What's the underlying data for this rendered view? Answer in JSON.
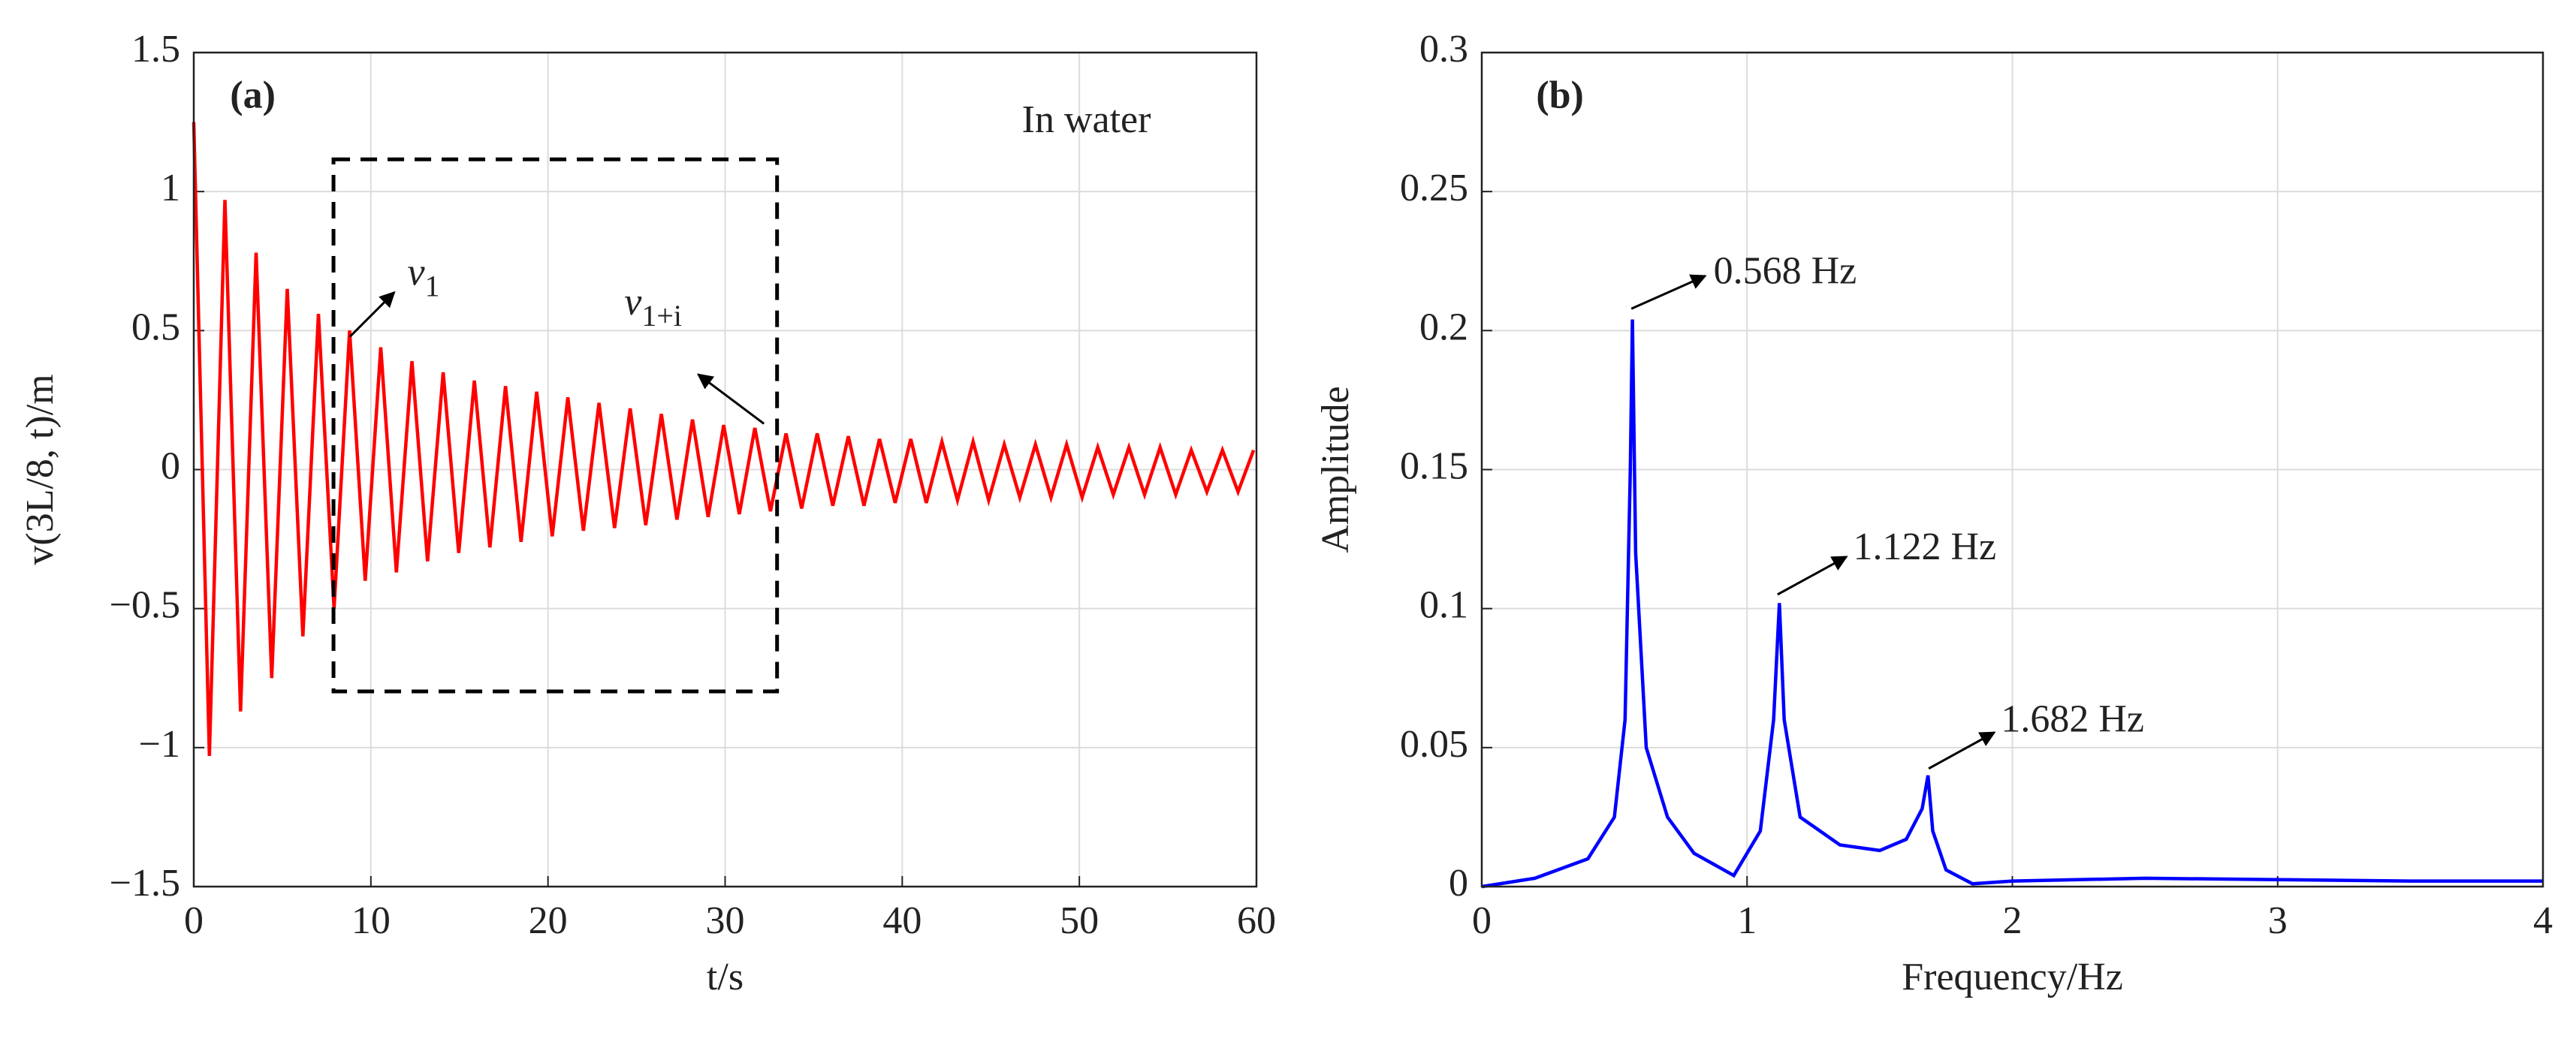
{
  "chart_data": [
    {
      "type": "line",
      "xlabel": "t/s",
      "ylabel": "v(3L/8, t)/m",
      "xlim": [
        0,
        60
      ],
      "xticks": [
        0,
        10,
        20,
        30,
        40,
        50,
        60
      ],
      "ylim": [
        -1.5,
        1.5
      ],
      "yticks": [
        {
          "value": -1.5,
          "label": "−1.5"
        },
        {
          "value": -1,
          "label": "−1"
        },
        {
          "value": -0.5,
          "label": "−0.5"
        },
        0,
        0.5,
        1,
        1.5
      ],
      "grid": true,
      "annotations": [
        {
          "text": "(a)"
        },
        {
          "text": "In water"
        },
        {
          "text": "v",
          "sub": "1"
        },
        {
          "text": "v",
          "sub": "1+i"
        }
      ],
      "series": [
        {
          "color": "#ff0000",
          "x": [
            0,
            0.88,
            1.76,
            2.64,
            3.52,
            4.4,
            5.28,
            6.16,
            7.04,
            7.92,
            8.8,
            9.68,
            10.56,
            11.44,
            12.32,
            13.2,
            14.08,
            14.96,
            15.84,
            16.72,
            17.6,
            18.48,
            19.36,
            20.24,
            21.12,
            22,
            22.88,
            23.76,
            24.64,
            25.52,
            26.4,
            27.28,
            28.16,
            29.04,
            29.92,
            30.8,
            31.68,
            32.56,
            33.44,
            34.32,
            35.2,
            36.08,
            36.96,
            37.84,
            38.72,
            39.6,
            40.48,
            41.36,
            42.24,
            43.12,
            44,
            44.88,
            45.76,
            46.64,
            47.52,
            48.4,
            49.28,
            50.16,
            51.04,
            51.92,
            52.8,
            53.68,
            54.56,
            55.44,
            56.32,
            57.2,
            58.08,
            58.96,
            59.84
          ],
          "values": [
            1.25,
            -1.03,
            0.97,
            -0.87,
            0.78,
            -0.75,
            0.65,
            -0.6,
            0.56,
            -0.5,
            0.5,
            -0.4,
            0.44,
            -0.37,
            0.39,
            -0.33,
            0.35,
            -0.3,
            0.32,
            -0.28,
            0.3,
            -0.26,
            0.28,
            -0.24,
            0.26,
            -0.22,
            0.24,
            -0.21,
            0.22,
            -0.2,
            0.2,
            -0.18,
            0.18,
            -0.17,
            0.16,
            -0.16,
            0.15,
            -0.15,
            0.13,
            -0.14,
            0.13,
            -0.13,
            0.12,
            -0.13,
            0.11,
            -0.12,
            0.11,
            -0.12,
            0.1,
            -0.11,
            0.1,
            -0.11,
            0.09,
            -0.1,
            0.09,
            -0.1,
            0.09,
            -0.1,
            0.08,
            -0.09,
            0.08,
            -0.09,
            0.08,
            -0.09,
            0.07,
            -0.08,
            0.07,
            -0.08,
            0.07
          ]
        }
      ]
    },
    {
      "type": "line",
      "xlabel": "Frequency/Hz",
      "ylabel": "Amplitude",
      "xlim": [
        0,
        4
      ],
      "xticks": [
        0,
        1,
        2,
        3,
        4
      ],
      "ylim": [
        0,
        0.3
      ],
      "yticks": [
        0,
        0.05,
        0.1,
        0.15,
        0.2,
        0.25,
        0.3
      ],
      "grid": true,
      "annotations": [
        {
          "text": "(b)"
        },
        {
          "text": "0.568 Hz"
        },
        {
          "text": "1.122 Hz"
        },
        {
          "text": "1.682 Hz"
        }
      ],
      "series": [
        {
          "color": "#0000ff",
          "x": [
            0,
            0.2,
            0.4,
            0.5,
            0.54,
            0.56,
            0.568,
            0.58,
            0.62,
            0.7,
            0.8,
            0.95,
            1.05,
            1.1,
            1.122,
            1.14,
            1.2,
            1.35,
            1.5,
            1.6,
            1.66,
            1.682,
            1.7,
            1.75,
            1.85,
            2,
            2.5,
            3,
            3.5,
            4
          ],
          "values": [
            0,
            0.003,
            0.01,
            0.025,
            0.06,
            0.15,
            0.204,
            0.12,
            0.05,
            0.025,
            0.012,
            0.004,
            0.02,
            0.06,
            0.102,
            0.06,
            0.025,
            0.015,
            0.013,
            0.017,
            0.028,
            0.04,
            0.02,
            0.006,
            0.001,
            0.002,
            0.003,
            0.0025,
            0.002,
            0.002
          ]
        }
      ]
    }
  ]
}
